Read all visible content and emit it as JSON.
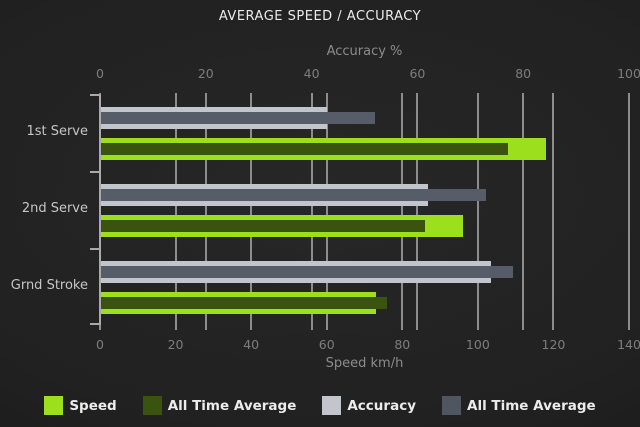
{
  "chart_data": {
    "type": "bar",
    "orientation": "horizontal",
    "title": "AVERAGE SPEED / ACCURACY",
    "categories": [
      "1st Serve",
      "2nd Serve",
      "Grnd Stroke"
    ],
    "axes": {
      "top": {
        "title": "Accuracy %",
        "min": 0,
        "max": 100,
        "ticks": [
          0,
          20,
          40,
          60,
          80,
          100
        ]
      },
      "bottom": {
        "title": "Speed km/h",
        "min": 0,
        "max": 140,
        "ticks": [
          0,
          20,
          40,
          60,
          80,
          100,
          120,
          140
        ]
      }
    },
    "series": [
      {
        "name": "Speed",
        "axis": "bottom",
        "slot": "speed",
        "role": "main",
        "color": "#9bdf1d",
        "values": [
          118,
          96,
          73
        ]
      },
      {
        "name": "All Time Average",
        "axis": "bottom",
        "slot": "speed",
        "role": "inset",
        "color": "#3a530e",
        "values": [
          108,
          86,
          76
        ]
      },
      {
        "name": "Accuracy",
        "axis": "top",
        "slot": "accuracy",
        "role": "main",
        "color": "#c2c6cc",
        "values": [
          43,
          62,
          74
        ]
      },
      {
        "name": "All Time Average",
        "axis": "top",
        "slot": "accuracy",
        "role": "inset",
        "color": "#565d68",
        "values": [
          52,
          73,
          78
        ]
      }
    ],
    "legend": [
      {
        "label": "Speed",
        "color": "#9bdf1d"
      },
      {
        "label": "All Time Average",
        "color": "#3a530e"
      },
      {
        "label": "Accuracy",
        "color": "#c2c6cc"
      },
      {
        "label": "All Time Average",
        "color": "#4f5660"
      }
    ],
    "grid": true,
    "legend_position": "bottom"
  },
  "colors": {
    "background": "#212121",
    "gridline": "#a5a5a5",
    "axis_frame": "#aaaaaa",
    "title_text": "#ebebeb",
    "tick_text": "#7d7d7d",
    "axis_title_text": "#8c8c8c",
    "category_text": "#c6c6c6",
    "legend_text": "#ececec"
  }
}
